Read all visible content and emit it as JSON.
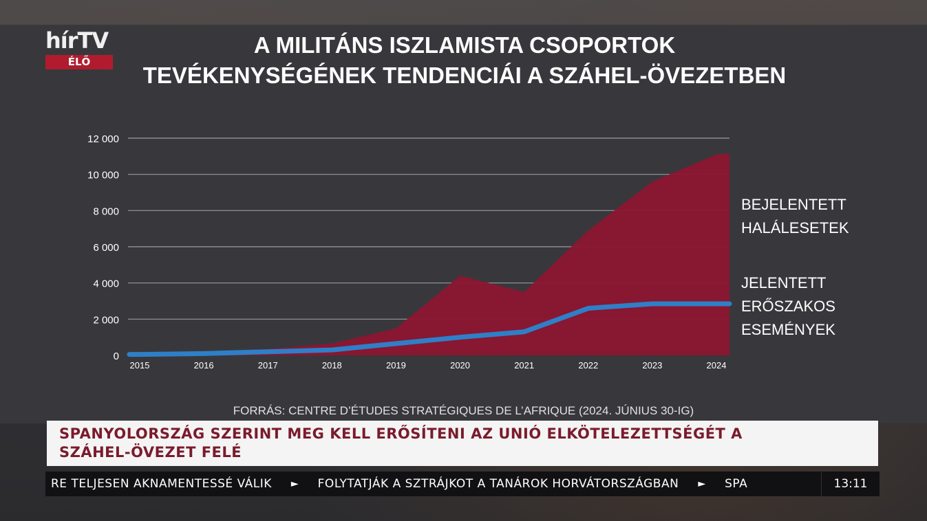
{
  "channel": {
    "logo_text": "hírTV",
    "live_label": "ÉLŐ"
  },
  "title": {
    "line1": "A MILITÁNS ISZLAMISTA CSOPORTOK",
    "line2": "TEVÉKENYSÉGÉNEK TENDENCIÁI A SZÁHEL-ÖVEZETBEN"
  },
  "series_labels": {
    "deaths": [
      "BEJELENTETT",
      "HALÁLESETEK"
    ],
    "events": [
      "JELENTETT",
      "ERŐSZAKOS",
      "ESEMÉNYEK"
    ]
  },
  "source": "FORRÁS: CENTRE D’ÉTUDES STRATÉGIQUES DE L’AFRIQUE (2024. JÚNIUS 30-IG)",
  "headline": {
    "line1": "SPANYOLORSZÁG SZERINT MEG KELL ERŐSÍTENI AZ UNIÓ ELKÖTELEZETTSÉGÉT A",
    "line2": "SZÁHEL-ÖVEZET FELÉ"
  },
  "ticker": {
    "items": [
      "RE TELJESEN AKNAMENTESSÉ VÁLIK",
      "FOLYTATJÁK A SZTRÁJKOT A TANÁROK HORVÁTORSZÁGBAN",
      "SPA"
    ],
    "separator": "►",
    "clock": "13:11"
  },
  "chart_data": {
    "type": "area",
    "x": [
      "2015",
      "2016",
      "2017",
      "2018",
      "2019",
      "2020",
      "2021",
      "2022",
      "2023",
      "2024"
    ],
    "ylim": [
      0,
      12000
    ],
    "yticks": [
      0,
      2000,
      4000,
      6000,
      8000,
      10000,
      12000
    ],
    "ytick_labels": [
      "0",
      "2 000",
      "4 000",
      "6 000",
      "8 000",
      "10 000",
      "12 000"
    ],
    "grid": true,
    "series": [
      {
        "name": "BEJELENTETT HALÁLESETEK",
        "kind": "area",
        "color": "#8c1530",
        "values": [
          50,
          150,
          350,
          650,
          1500,
          4400,
          3500,
          6900,
          9600,
          11100
        ]
      },
      {
        "name": "JELENTETT ERŐSZAKOS ESEMÉNYEK",
        "kind": "line",
        "color": "#2f7fc8",
        "values": [
          50,
          100,
          200,
          300,
          650,
          1000,
          1300,
          2600,
          2850,
          2850
        ]
      }
    ]
  }
}
